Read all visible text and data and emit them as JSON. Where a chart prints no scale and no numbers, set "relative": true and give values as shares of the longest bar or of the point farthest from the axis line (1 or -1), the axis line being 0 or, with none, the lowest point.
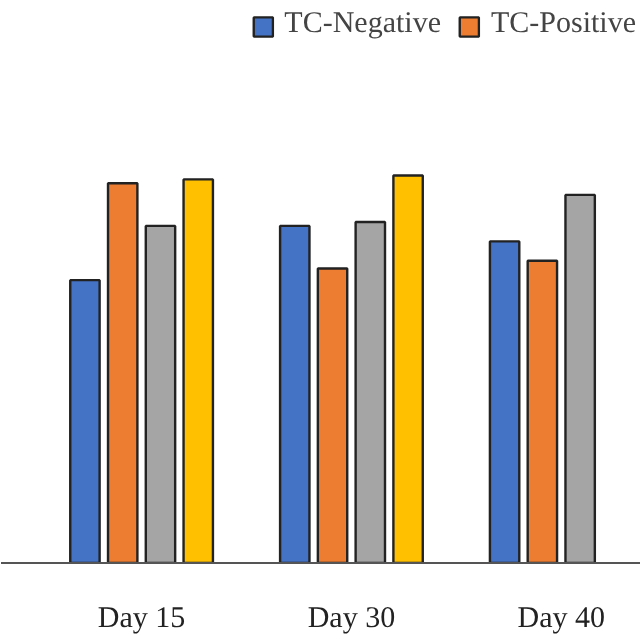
{
  "chart_data": {
    "type": "bar",
    "relative": true,
    "categories": [
      "Day 15",
      "Day 30",
      "Day 40"
    ],
    "series": [
      {
        "name": "TC-Negative",
        "color": "#4472c4",
        "values": [
          0.73,
          0.87,
          0.83
        ]
      },
      {
        "name": "TC-Positive",
        "color": "#ed7d31",
        "values": [
          0.98,
          0.76,
          0.78
        ]
      },
      {
        "color": "#a5a5a5",
        "values": [
          0.87,
          0.88,
          0.95
        ]
      },
      {
        "color": "#ffc000",
        "values": [
          0.99,
          1.0,
          null
        ]
      }
    ],
    "legend": "top right"
  }
}
